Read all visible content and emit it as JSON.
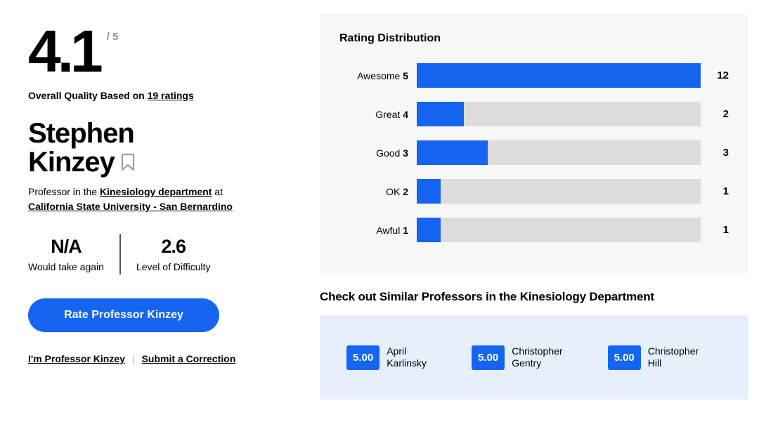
{
  "colors": {
    "accent": "#1565f0",
    "bar_track": "#dcdcdc",
    "panel_bg": "#f7f7f7",
    "similar_panel_bg": "#e7effc"
  },
  "rating": {
    "score": "4.1",
    "out_of": "/ 5",
    "caption_prefix": "Overall Quality Based on ",
    "ratings_link": "19 ratings"
  },
  "professor": {
    "first_name": "Stephen",
    "last_name": "Kinzey",
    "role_prefix": "Professor in the ",
    "department_link": "Kinesiology department",
    "role_middle": " at ",
    "school_link": "California State University - San Bernardino"
  },
  "stats": {
    "would_take_again": {
      "value": "N/A",
      "label": "Would take again"
    },
    "difficulty": {
      "value": "2.6",
      "label": "Level of Difficulty"
    }
  },
  "actions": {
    "rate_button": "Rate Professor Kinzey",
    "im_professor_link": "I'm Professor Kinzey",
    "separator": "|",
    "correction_link": "Submit a Correction"
  },
  "chart_data": {
    "type": "bar",
    "orientation": "horizontal",
    "title": "Rating Distribution",
    "categories": [
      "Awesome 5",
      "Great 4",
      "Good 3",
      "OK 2",
      "Awful 1"
    ],
    "values": [
      12,
      2,
      3,
      1,
      1
    ],
    "xlim": [
      0,
      12
    ],
    "bar_color": "#1565f0",
    "track_color": "#dcdcdc",
    "legend": "none",
    "grid": false
  },
  "similar": {
    "title": "Check out Similar Professors in the Kinesiology Department",
    "professors": [
      {
        "score": "5.00",
        "first": "April",
        "last": "Karlinsky"
      },
      {
        "score": "5.00",
        "first": "Christopher",
        "last": "Gentry"
      },
      {
        "score": "5.00",
        "first": "Christopher",
        "last": "Hill"
      }
    ]
  }
}
